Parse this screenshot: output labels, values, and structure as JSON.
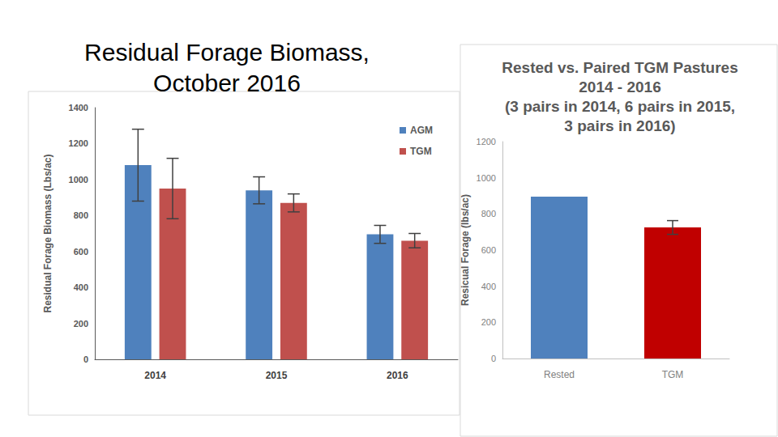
{
  "chart_data": [
    {
      "type": "bar",
      "title": "Residual Forage Biomass,\nOctober 2016",
      "y_label": "Residual Forage Biomass (Lbs/ac)",
      "categories": [
        "2014",
        "2015",
        "2016"
      ],
      "series": [
        {
          "name": "AGM",
          "color": "#4f81bd",
          "values": [
            1080,
            940,
            695
          ],
          "errors": [
            200,
            75,
            50
          ]
        },
        {
          "name": "TGM",
          "color": "#c0504d",
          "values": [
            950,
            870,
            660
          ],
          "errors": [
            168,
            50,
            40
          ]
        }
      ],
      "ylim": [
        0,
        1400
      ],
      "yticks": [
        0,
        200,
        400,
        600,
        800,
        1000,
        1200,
        1400
      ],
      "grid": false,
      "legend": "top-right"
    },
    {
      "type": "bar",
      "title": "Rested vs. Paired TGM Pastures\n2014 - 2016\n(3 pairs in 2014, 6 pairs in 2015,\n3 pairs in 2016)",
      "y_label": "Resicual Forage (lbs/ac)",
      "categories": [
        "Rested",
        "TGM"
      ],
      "values": [
        895,
        725
      ],
      "errors": [
        null,
        38
      ],
      "colors": [
        "#4f81bd",
        "#c00000"
      ],
      "ylim": [
        0,
        1200
      ],
      "yticks": [
        0,
        200,
        400,
        600,
        800,
        1000,
        1200
      ],
      "grid": false
    }
  ]
}
